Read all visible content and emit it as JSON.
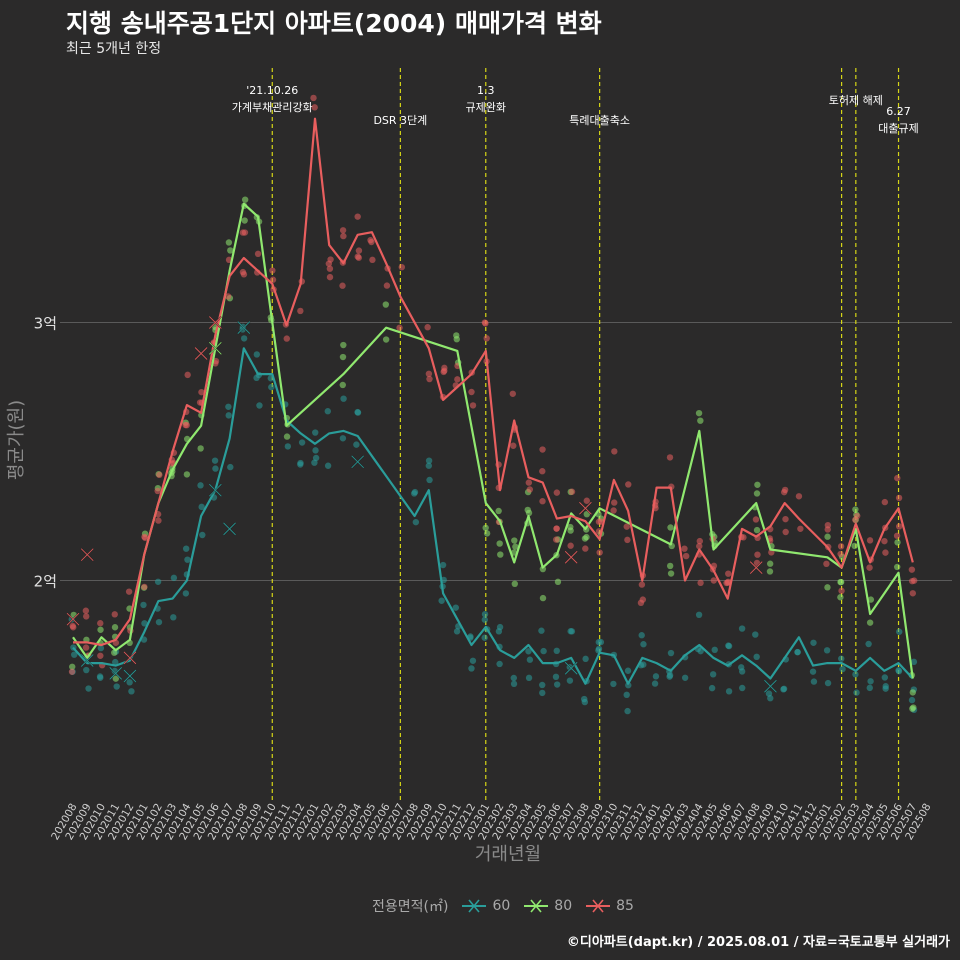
{
  "title": "지행 송내주공1단지 아파트(2004) 매매가격 변화",
  "subtitle": "최근 5개년 한정",
  "caption": "©디아파트(dapt.kr) / 2025.08.01 / 자료=국토교통부 실거래가",
  "colors": {
    "bg": "#2b2a2a",
    "s60": "#2a9d9a",
    "s80": "#90e86f",
    "s85": "#e85e5e",
    "event": "#d6d617",
    "grid": "#5a5a5a",
    "text": "#a9a9a9"
  },
  "chart_data": {
    "type": "line",
    "xlabel": "거래년월",
    "ylabel": "평균가(원)",
    "ylim": [
      14500,
      32000
    ],
    "y_ticks": [
      {
        "value": 20000,
        "label": "2억"
      },
      {
        "value": 30000,
        "label": "3억"
      }
    ],
    "x_months": [
      "202008",
      "202009",
      "202010",
      "202011",
      "202012",
      "202101",
      "202102",
      "202103",
      "202104",
      "202105",
      "202106",
      "202107",
      "202108",
      "202109",
      "202110",
      "202111",
      "202112",
      "202201",
      "202202",
      "202203",
      "202204",
      "202205",
      "202206",
      "202207",
      "202208",
      "202209",
      "202210",
      "202211",
      "202212",
      "202301",
      "202302",
      "202303",
      "202304",
      "202305",
      "202306",
      "202307",
      "202308",
      "202309",
      "202310",
      "202311",
      "202312",
      "202401",
      "202402",
      "202403",
      "202404",
      "202405",
      "202406",
      "202407",
      "202408",
      "202409",
      "202410",
      "202411",
      "202412",
      "202501",
      "202502",
      "202503",
      "202504",
      "202505",
      "202506",
      "202507",
      "202508"
    ],
    "legend_title": "전용면적(㎡)",
    "series": [
      {
        "name": "60",
        "color": "#2a9d9a",
        "line": [
          [
            "202008",
            17400
          ],
          [
            "202009",
            16800
          ],
          [
            "202010",
            16800
          ],
          [
            "202011",
            16700
          ],
          [
            "202012",
            16900
          ],
          [
            "202101",
            18000
          ],
          [
            "202102",
            19200
          ],
          [
            "202103",
            19300
          ],
          [
            "202104",
            20000
          ],
          [
            "202105",
            22500
          ],
          [
            "202106",
            23500
          ],
          [
            "202107",
            25500
          ],
          [
            "202108",
            29000
          ],
          [
            "202109",
            28000
          ],
          [
            "202110",
            28000
          ],
          [
            "202111",
            26200
          ],
          [
            "202112",
            25700
          ],
          [
            "202201",
            25300
          ],
          [
            "202202",
            25700
          ],
          [
            "202203",
            25800
          ],
          [
            "202204",
            25600
          ],
          [
            "202208",
            22500
          ],
          [
            "202209",
            23500
          ],
          [
            "202210",
            19500
          ],
          [
            "202211",
            18500
          ],
          [
            "202212",
            17500
          ],
          [
            "202301",
            18200
          ],
          [
            "202302",
            17300
          ],
          [
            "202303",
            17000
          ],
          [
            "202304",
            17500
          ],
          [
            "202305",
            16800
          ],
          [
            "202306",
            16800
          ],
          [
            "202307",
            17000
          ],
          [
            "202308",
            16000
          ],
          [
            "202309",
            17200
          ],
          [
            "202310",
            17100
          ],
          [
            "202311",
            16000
          ],
          [
            "202312",
            17000
          ],
          [
            "202401",
            16800
          ],
          [
            "202402",
            16500
          ],
          [
            "202403",
            17100
          ],
          [
            "202404",
            17500
          ],
          [
            "202405",
            17000
          ],
          [
            "202406",
            16700
          ],
          [
            "202407",
            17100
          ],
          [
            "202408",
            16700
          ],
          [
            "202409",
            16200
          ],
          [
            "202410",
            17000
          ],
          [
            "202411",
            17800
          ],
          [
            "202412",
            16700
          ],
          [
            "202501",
            16800
          ],
          [
            "202502",
            16800
          ],
          [
            "202503",
            16500
          ],
          [
            "202504",
            17000
          ],
          [
            "202505",
            16500
          ],
          [
            "202506",
            16800
          ],
          [
            "202507",
            16200
          ]
        ],
        "x_marks": [
          [
            "202009",
            16900
          ],
          [
            "202011",
            16400
          ],
          [
            "202012",
            16300
          ],
          [
            "202106",
            23500
          ],
          [
            "202107",
            22000
          ],
          [
            "202108",
            29800
          ],
          [
            "202204",
            24600
          ],
          [
            "202307",
            16600
          ],
          [
            "202409",
            15900
          ]
        ]
      },
      {
        "name": "80",
        "color": "#90e86f",
        "line": [
          [
            "202008",
            17800
          ],
          [
            "202009",
            17000
          ],
          [
            "202010",
            17800
          ],
          [
            "202011",
            17300
          ],
          [
            "202012",
            17700
          ],
          [
            "202101",
            21000
          ],
          [
            "202102",
            23000
          ],
          [
            "202103",
            24300
          ],
          [
            "202104",
            25300
          ],
          [
            "202105",
            26000
          ],
          [
            "202106",
            29000
          ],
          [
            "202107",
            32000
          ],
          [
            "202108",
            34600
          ],
          [
            "202109",
            34100
          ],
          [
            "202110",
            30000
          ],
          [
            "202111",
            26000
          ],
          [
            "202203",
            28000
          ],
          [
            "202206",
            29800
          ],
          [
            "202211",
            28900
          ],
          [
            "202301",
            23000
          ],
          [
            "202302",
            22300
          ],
          [
            "202303",
            20700
          ],
          [
            "202304",
            22500
          ],
          [
            "202305",
            20500
          ],
          [
            "202306",
            21000
          ],
          [
            "202307",
            22600
          ],
          [
            "202308",
            22000
          ],
          [
            "202309",
            22800
          ],
          [
            "202402",
            21400
          ],
          [
            "202404",
            25800
          ],
          [
            "202405",
            21200
          ],
          [
            "202408",
            23000
          ],
          [
            "202409",
            21200
          ],
          [
            "202501",
            20900
          ],
          [
            "202502",
            20500
          ],
          [
            "202503",
            22000
          ],
          [
            "202504",
            18700
          ],
          [
            "202506",
            20300
          ],
          [
            "202507",
            16200
          ]
        ],
        "x_marks": [
          [
            "202106",
            29000
          ]
        ]
      },
      {
        "name": "85",
        "color": "#e85e5e",
        "line": [
          [
            "202008",
            17600
          ],
          [
            "202009",
            17600
          ],
          [
            "202010",
            17500
          ],
          [
            "202011",
            17700
          ],
          [
            "202012",
            18500
          ],
          [
            "202101",
            21000
          ],
          [
            "202102",
            23000
          ],
          [
            "202103",
            25000
          ],
          [
            "202104",
            26800
          ],
          [
            "202105",
            26500
          ],
          [
            "202106",
            29500
          ],
          [
            "202107",
            31800
          ],
          [
            "202108",
            32500
          ],
          [
            "202109",
            32000
          ],
          [
            "202110",
            31500
          ],
          [
            "202111",
            29900
          ],
          [
            "202112",
            31500
          ],
          [
            "202201",
            37900
          ],
          [
            "202202",
            33000
          ],
          [
            "202203",
            32300
          ],
          [
            "202204",
            33400
          ],
          [
            "202205",
            33500
          ],
          [
            "202206",
            32300
          ],
          [
            "202207",
            31000
          ],
          [
            "202209",
            29000
          ],
          [
            "202210",
            27000
          ],
          [
            "202211",
            27500
          ],
          [
            "202212",
            28000
          ],
          [
            "202301",
            28900
          ],
          [
            "202302",
            23500
          ],
          [
            "202303",
            26200
          ],
          [
            "202304",
            24000
          ],
          [
            "202305",
            23800
          ],
          [
            "202306",
            22400
          ],
          [
            "202307",
            22500
          ],
          [
            "202308",
            22300
          ],
          [
            "202309",
            21600
          ],
          [
            "202310",
            23900
          ],
          [
            "202311",
            22700
          ],
          [
            "202312",
            20000
          ],
          [
            "202401",
            23600
          ],
          [
            "202402",
            23600
          ],
          [
            "202403",
            20000
          ],
          [
            "202404",
            21200
          ],
          [
            "202405",
            20400
          ],
          [
            "202406",
            19300
          ],
          [
            "202407",
            22000
          ],
          [
            "202408",
            21700
          ],
          [
            "202409",
            22100
          ],
          [
            "202410",
            23000
          ],
          [
            "202411",
            22400
          ],
          [
            "202501",
            21300
          ],
          [
            "202502",
            20500
          ],
          [
            "202503",
            22200
          ],
          [
            "202504",
            20700
          ],
          [
            "202505",
            22000
          ],
          [
            "202506",
            22800
          ],
          [
            "202507",
            20700
          ]
        ],
        "x_marks": [
          [
            "202008",
            18500
          ],
          [
            "202009",
            21000
          ],
          [
            "202012",
            17000
          ],
          [
            "202105",
            28800
          ],
          [
            "202106",
            30000
          ],
          [
            "202307",
            20900
          ],
          [
            "202308",
            22800
          ],
          [
            "202408",
            20500
          ]
        ]
      }
    ],
    "events": [
      {
        "month": "202110",
        "label_lines": [
          "'21.10.26",
          "가계부채관리강화"
        ]
      },
      {
        "month": "202207",
        "label_lines": [
          "DSR 3단계"
        ]
      },
      {
        "month": "202301",
        "label_lines": [
          "1.3",
          "규제완화"
        ]
      },
      {
        "month": "202309",
        "label_lines": [
          "특례대출축소"
        ]
      },
      {
        "month": "202502",
        "label_lines": []
      },
      {
        "month": "202503",
        "label_lines": [
          "토허제 해제"
        ]
      },
      {
        "month": "202506",
        "label_lines": [
          "6.27",
          "대출규제"
        ]
      }
    ]
  }
}
